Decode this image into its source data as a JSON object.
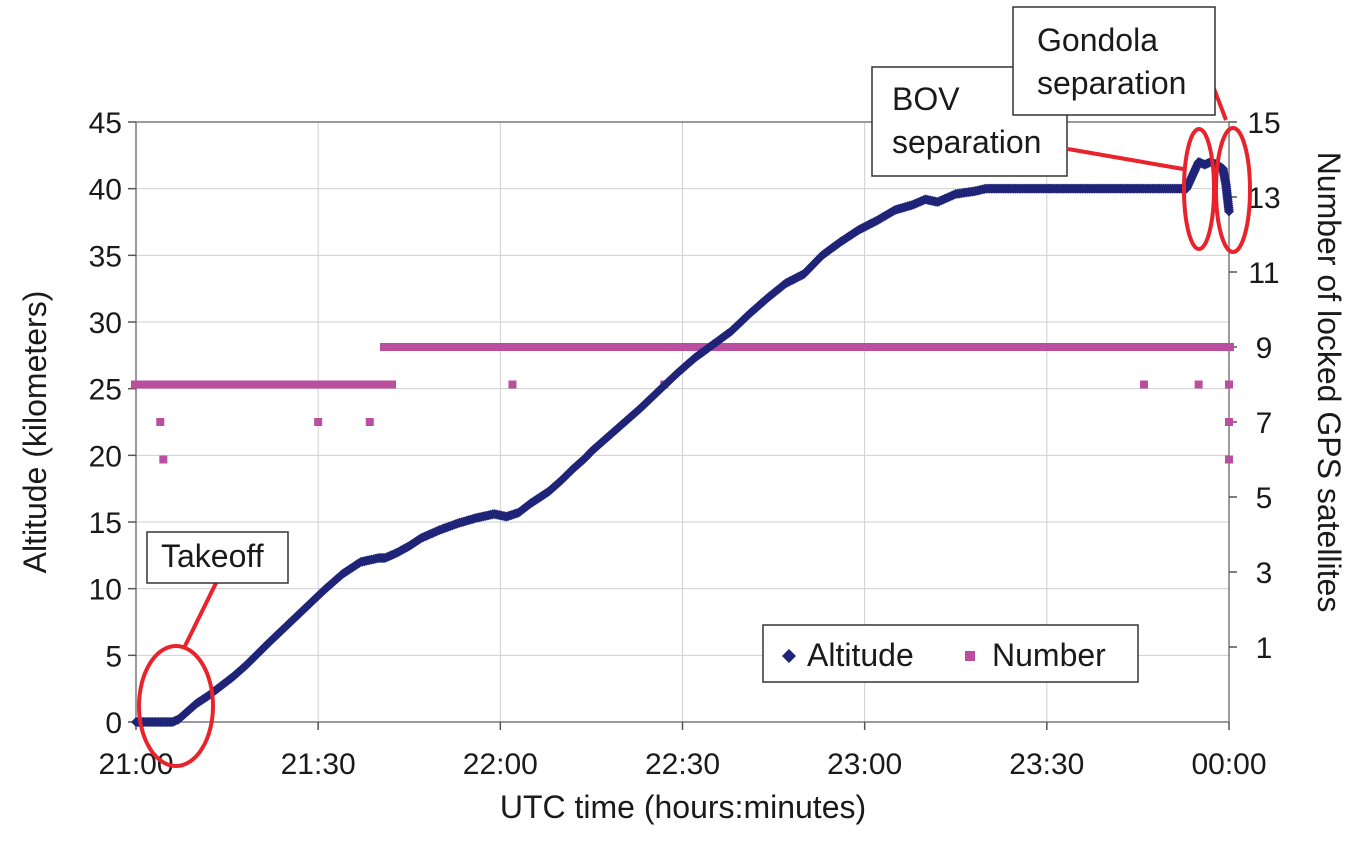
{
  "chart_data": {
    "type": "scatter",
    "xlabel": "UTC time (hours:minutes)",
    "ylabel": "Altitude (kilometers)",
    "y2label": "Number of locked GPS satellites",
    "x_tick_labels": [
      "21:00",
      "21:30",
      "22:00",
      "22:30",
      "23:00",
      "23:30",
      "00:00"
    ],
    "x_tick_minutes": [
      0,
      30,
      60,
      90,
      120,
      150,
      180
    ],
    "xlim_minutes_after_21_00": [
      0,
      180
    ],
    "ylim": [
      0,
      45
    ],
    "y_ticks": [
      0,
      5,
      10,
      15,
      20,
      25,
      30,
      35,
      40,
      45
    ],
    "y2lim": [
      -1,
      15
    ],
    "y2_ticks": [
      1,
      3,
      5,
      7,
      9,
      11,
      13,
      15
    ],
    "grid": true,
    "legend_position": "bottom-right",
    "series": [
      {
        "name": "Altitude",
        "axis": "left",
        "color": "#1f2478",
        "marker": "diamond",
        "x_minutes_after_21_00": [
          0,
          1,
          2,
          3,
          4,
          5,
          6,
          7,
          8,
          9,
          10,
          12,
          14,
          16,
          18,
          20,
          22,
          25,
          28,
          31,
          34,
          37,
          40,
          41,
          43,
          45,
          47,
          50,
          53,
          56,
          59,
          61,
          63,
          65,
          67,
          68,
          70,
          72,
          74,
          75,
          77,
          80,
          83,
          86,
          89,
          92,
          95,
          98,
          101,
          104,
          107,
          110,
          113,
          116,
          119,
          122,
          125,
          128,
          130,
          132,
          135,
          138,
          140,
          142,
          144,
          146,
          148,
          150,
          151,
          153,
          155,
          157,
          159,
          161,
          163,
          165,
          168,
          171,
          173,
          174,
          175,
          176,
          177,
          178,
          179,
          179.5,
          180
        ],
        "values": [
          0,
          0,
          0,
          0,
          0,
          0,
          0,
          0.2,
          0.6,
          1.0,
          1.4,
          2.0,
          2.7,
          3.4,
          4.2,
          5.1,
          6.0,
          7.3,
          8.6,
          9.9,
          11.1,
          12.0,
          12.3,
          12.3,
          12.7,
          13.2,
          13.8,
          14.4,
          14.9,
          15.3,
          15.6,
          15.4,
          15.7,
          16.4,
          17.0,
          17.3,
          18.1,
          19.0,
          19.8,
          20.3,
          21.1,
          22.3,
          23.5,
          24.8,
          26.1,
          27.3,
          28.3,
          29.3,
          30.6,
          31.8,
          32.9,
          33.6,
          35.0,
          36.0,
          36.9,
          37.6,
          38.4,
          38.8,
          39.2,
          39.0,
          39.6,
          39.8,
          40.0,
          40.0,
          40.0,
          40.0,
          40.0,
          40.0,
          40.0,
          40.0,
          40.0,
          40.0,
          40.0,
          40.0,
          40.0,
          40.0,
          40.0,
          40.0,
          40.0,
          41.0,
          42.0,
          41.8,
          42.0,
          41.8,
          41.5,
          40.3,
          38.3
        ]
      },
      {
        "name": "Number",
        "axis": "right",
        "color": "#b94f9e",
        "marker": "square",
        "segments": [
          {
            "x_minutes_after_21_00": [
              0,
              42
            ],
            "value": 8
          },
          {
            "x_minutes_after_21_00": [
              41,
              180
            ],
            "value": 9
          }
        ],
        "x_minutes_after_21_00": [
          4,
          4.5,
          30,
          38.5,
          62,
          87,
          166,
          175,
          180,
          180,
          180
        ],
        "values": [
          7,
          6,
          7,
          7,
          8,
          8,
          8,
          8,
          8,
          7,
          6
        ]
      }
    ],
    "annotations": [
      {
        "text": "Takeoff",
        "target_x_minutes_after_21_00": 6,
        "target_value": 1
      },
      {
        "text": "BOV\nseparation",
        "target_x_minutes_after_21_00": 176,
        "target_value": 40
      },
      {
        "text": "Gondola\nseparation",
        "target_x_minutes_after_21_00": 180,
        "target_value": 40
      }
    ]
  }
}
